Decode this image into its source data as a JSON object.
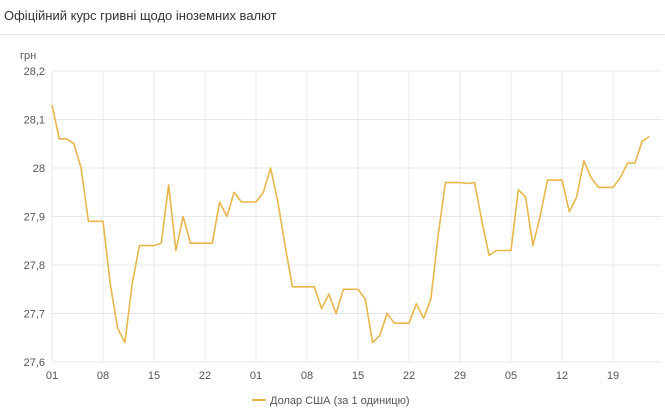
{
  "title": "Офіційний курс гривні щодо іноземних валют",
  "chart_data": {
    "type": "line",
    "title": "",
    "ylabel": "грн",
    "xlabel": "",
    "ylim": [
      27.6,
      28.2
    ],
    "yticks": [
      "27,6",
      "27,7",
      "27,8",
      "27,9",
      "28",
      "28,1",
      "28,2"
    ],
    "ytick_values": [
      27.6,
      27.7,
      27.8,
      27.9,
      28.0,
      28.1,
      28.2
    ],
    "xtick_labels": [
      "01",
      "08",
      "15",
      "22",
      "01",
      "08",
      "15",
      "22",
      "29",
      "05",
      "12",
      "19"
    ],
    "grid": true,
    "legend_position": "bottom",
    "x": [
      "01",
      "02",
      "03",
      "04",
      "05",
      "06",
      "07",
      "08",
      "09",
      "10",
      "11",
      "12",
      "13",
      "14",
      "15",
      "16",
      "17",
      "18",
      "19",
      "20",
      "21",
      "22",
      "23",
      "24",
      "25",
      "26",
      "27",
      "28",
      "01",
      "02",
      "03",
      "04",
      "05",
      "06",
      "07",
      "08",
      "09",
      "10",
      "11",
      "12",
      "13",
      "14",
      "15",
      "16",
      "17",
      "18",
      "19",
      "20",
      "21",
      "22",
      "23",
      "24",
      "25",
      "26",
      "27",
      "28",
      "29",
      "30",
      "31",
      "01",
      "02",
      "03",
      "04",
      "05",
      "06",
      "07",
      "08",
      "09",
      "10",
      "11",
      "12",
      "13",
      "14",
      "15",
      "16",
      "17",
      "18",
      "19",
      "20",
      "21",
      "22",
      "23",
      "24"
    ],
    "series": [
      {
        "name": "Долар США (за 1 одиницю)",
        "color": "#e8b64a",
        "values": [
          28.13,
          28.06,
          28.06,
          28.05,
          28.0,
          27.89,
          27.89,
          27.89,
          27.76,
          27.67,
          27.64,
          27.76,
          27.84,
          27.84,
          27.84,
          27.845,
          27.965,
          27.83,
          27.9,
          27.845,
          27.845,
          27.845,
          27.845,
          27.93,
          27.9,
          27.95,
          27.93,
          27.93,
          27.93,
          27.95,
          28.0,
          27.93,
          27.84,
          27.755,
          27.755,
          27.755,
          27.755,
          27.71,
          27.74,
          27.7,
          27.75,
          27.75,
          27.75,
          27.73,
          27.64,
          27.655,
          27.7,
          27.68,
          27.68,
          27.68,
          27.72,
          27.69,
          27.73,
          27.86,
          27.97,
          27.97,
          27.97,
          27.968,
          27.97,
          27.89,
          27.82,
          27.83,
          27.83,
          27.83,
          27.955,
          27.94,
          27.84,
          27.9,
          27.975,
          27.975,
          27.975,
          27.91,
          27.94,
          28.015,
          27.98,
          27.96,
          27.96,
          27.96,
          27.98,
          28.01,
          28.01,
          28.055,
          28.065
        ]
      }
    ]
  },
  "colors": {
    "grid": "#e9e9e9",
    "text": "#555555"
  }
}
